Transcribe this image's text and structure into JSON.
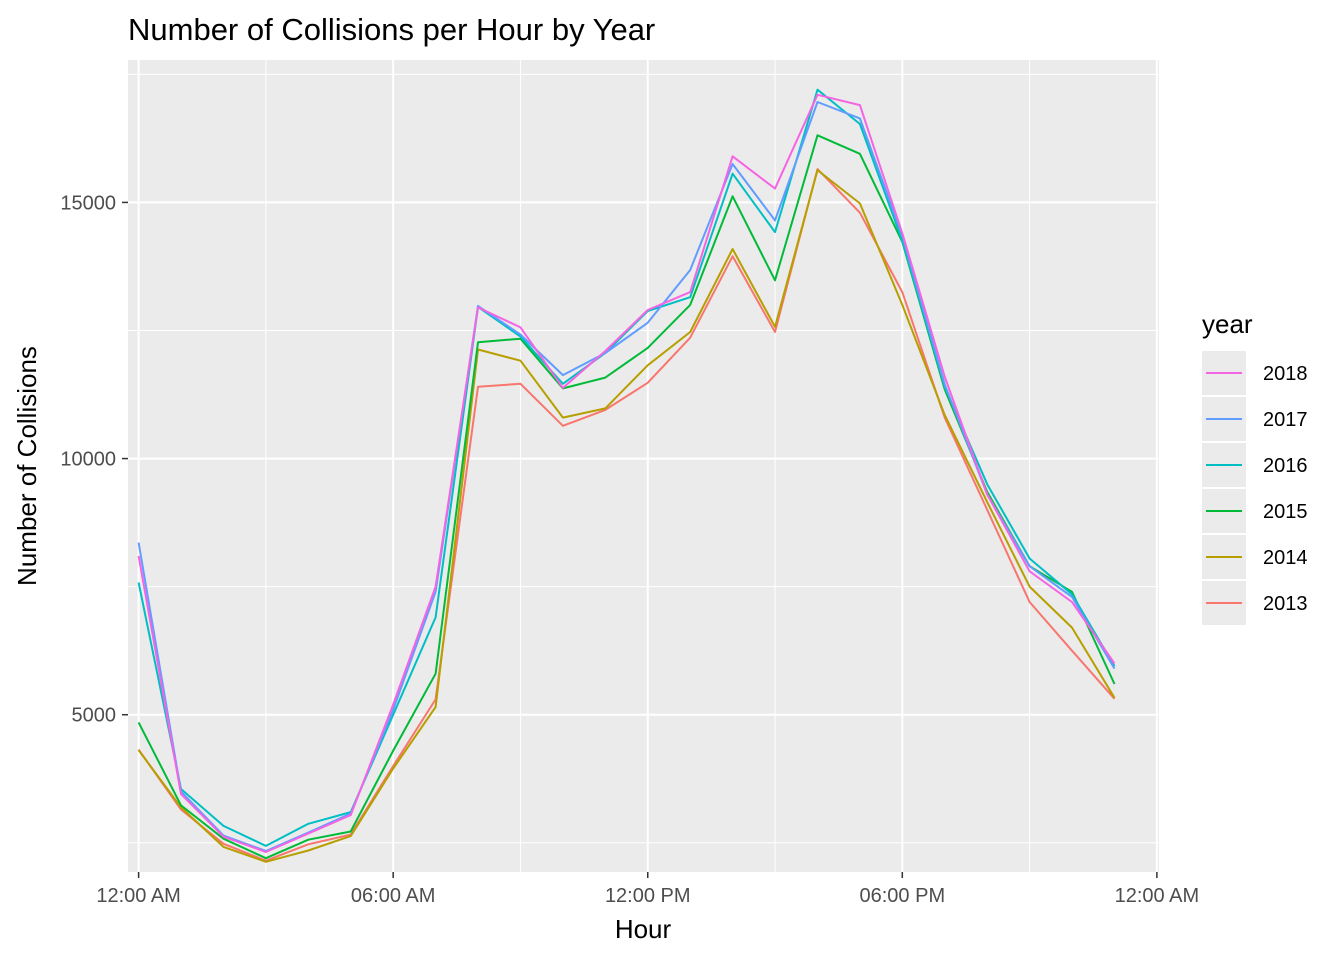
{
  "chart_data": {
    "type": "line",
    "title": "Number of Collisions per Hour by Year",
    "xlabel": "Hour",
    "ylabel": "Number of Collisions",
    "x": [
      0,
      1,
      2,
      3,
      4,
      5,
      6,
      7,
      8,
      9,
      10,
      11,
      12,
      13,
      14,
      15,
      16,
      17,
      18,
      19,
      20,
      21,
      22,
      23
    ],
    "x_unit": "hour of day",
    "xlim": [
      -0.25,
      24.05
    ],
    "ylim": [
      1930,
      17780
    ],
    "x_ticks": [
      {
        "value": 0,
        "label": "12:00 AM"
      },
      {
        "value": 6,
        "label": "06:00 AM"
      },
      {
        "value": 12,
        "label": "12:00 PM"
      },
      {
        "value": 18,
        "label": "06:00 PM"
      },
      {
        "value": 24,
        "label": "12:00 AM"
      }
    ],
    "y_ticks": [
      {
        "value": 5000,
        "label": "5000"
      },
      {
        "value": 10000,
        "label": "10000"
      },
      {
        "value": 15000,
        "label": "15000"
      }
    ],
    "y_minor_ticks": [
      2500,
      7500,
      12500,
      17500
    ],
    "grid": true,
    "legend": {
      "title": "year",
      "position": "right"
    },
    "series": [
      {
        "name": "2018",
        "color": "#F564E3",
        "values": [
          8100,
          3450,
          2620,
          2320,
          2680,
          3040,
          5200,
          7500,
          12950,
          12560,
          11380,
          12100,
          12900,
          13250,
          15900,
          15270,
          17100,
          16900,
          14400,
          11600,
          9300,
          7800,
          7200,
          6000
        ]
      },
      {
        "name": "2017",
        "color": "#619CFF",
        "values": [
          8360,
          3500,
          2640,
          2340,
          2700,
          3070,
          5100,
          7400,
          12980,
          12420,
          11630,
          12060,
          12650,
          13680,
          15750,
          14650,
          16960,
          16640,
          14350,
          11450,
          9300,
          7900,
          7300,
          5900
        ]
      },
      {
        "name": "2016",
        "color": "#00BFC4",
        "values": [
          7580,
          3550,
          2830,
          2440,
          2870,
          3100,
          5000,
          6900,
          12960,
          12380,
          11460,
          12060,
          12880,
          13150,
          15560,
          14420,
          17200,
          16530,
          14250,
          11400,
          9500,
          8050,
          7350,
          5950
        ]
      },
      {
        "name": "2015",
        "color": "#00BA38",
        "values": [
          4850,
          3230,
          2580,
          2200,
          2560,
          2720,
          4300,
          5800,
          12270,
          12340,
          11370,
          11580,
          12160,
          13000,
          15120,
          13480,
          16310,
          15950,
          14230,
          11350,
          9350,
          7900,
          7400,
          5600
        ]
      },
      {
        "name": "2014",
        "color": "#B79F00",
        "values": [
          4310,
          3190,
          2420,
          2130,
          2350,
          2630,
          3950,
          5150,
          12130,
          11910,
          10800,
          10980,
          11820,
          12470,
          14090,
          12570,
          15630,
          14980,
          13000,
          10850,
          9150,
          7500,
          6700,
          5330
        ]
      },
      {
        "name": "2013",
        "color": "#F8766D",
        "values": [
          4320,
          3150,
          2480,
          2150,
          2470,
          2660,
          4000,
          5300,
          11400,
          11460,
          10640,
          10950,
          11480,
          12360,
          13950,
          12470,
          15650,
          14800,
          13250,
          10800,
          9000,
          7200,
          6250,
          5310
        ]
      }
    ]
  }
}
